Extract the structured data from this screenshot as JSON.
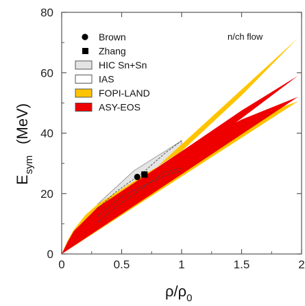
{
  "chart_data": {
    "type": "area",
    "annotation": "n/ch flow",
    "xlabel": {
      "main": "ρ/ρ",
      "sub": "0"
    },
    "ylabel": {
      "main": "E",
      "sub": "sym",
      "unit": "(MeV)"
    },
    "xlim": [
      0,
      2
    ],
    "ylim": [
      0,
      80
    ],
    "x_ticks": [
      "0",
      "0.5",
      "1",
      "1.5",
      "2"
    ],
    "y_ticks": [
      "0",
      "20",
      "40",
      "60",
      "80"
    ],
    "grid": false,
    "legend_position": "top-left",
    "legend": [
      {
        "label": "Brown",
        "marker": "circle"
      },
      {
        "label": "Zhang",
        "marker": "square"
      },
      {
        "label": "HIC Sn+Sn",
        "marker": "box",
        "color": "#e4e4e4",
        "border": "#555555"
      },
      {
        "label": "IAS",
        "marker": "box",
        "color": "#ffffff",
        "border": "#555555"
      },
      {
        "label": "FOPI-LAND",
        "marker": "box",
        "color": "#ffc400",
        "border": "#555555"
      },
      {
        "label": "ASY-EOS",
        "marker": "box",
        "color": "#ee0000",
        "border": "#555555"
      }
    ],
    "points": [
      {
        "name": "Brown",
        "marker": "circle",
        "x": 0.63,
        "y": 25.5
      },
      {
        "name": "Zhang",
        "marker": "square",
        "x": 0.69,
        "y": 26.3
      }
    ],
    "bands": [
      {
        "name": "HIC Sn+Sn",
        "color": "#e4e4e4",
        "stroke": "#888888",
        "upper": [
          [
            0.3,
            16.5
          ],
          [
            0.6,
            27.5
          ],
          [
            1.0,
            37.5
          ]
        ],
        "lower": [
          [
            0.3,
            11.0
          ],
          [
            0.6,
            18.5
          ],
          [
            1.0,
            27.0
          ]
        ]
      },
      {
        "name": "FOPI-LAND",
        "color": "#ffc400",
        "upper": [
          [
            0.0,
            0.0
          ],
          [
            0.05,
            4.5
          ],
          [
            0.1,
            8.0
          ],
          [
            0.2,
            13.0
          ],
          [
            0.3,
            16.5
          ],
          [
            1.0,
            34.0
          ],
          [
            1.5,
            52.5
          ],
          [
            1.97,
            71.5
          ]
        ],
        "lower": [
          [
            1.97,
            50.5
          ],
          [
            1.5,
            44.0
          ],
          [
            1.0,
            34.0
          ],
          [
            0.3,
            9.5
          ],
          [
            0.2,
            6.5
          ],
          [
            0.1,
            3.5
          ],
          [
            0.0,
            0.0
          ]
        ]
      },
      {
        "name": "ASY-EOS",
        "color": "#ee0000",
        "upper": [
          [
            0.0,
            0.0
          ],
          [
            0.05,
            4.0
          ],
          [
            0.1,
            7.5
          ],
          [
            0.2,
            11.5
          ],
          [
            0.3,
            15.5
          ],
          [
            1.0,
            34.0
          ],
          [
            1.5,
            47.5
          ],
          [
            1.97,
            59.0
          ]
        ],
        "lower": [
          [
            1.97,
            52.0
          ],
          [
            1.5,
            44.5
          ],
          [
            1.0,
            34.0
          ],
          [
            0.3,
            11.5
          ],
          [
            0.2,
            8.5
          ],
          [
            0.1,
            5.0
          ],
          [
            0.0,
            0.0
          ]
        ]
      }
    ],
    "ias_dashed_lines": [
      [
        [
          0.3,
          15.0
        ],
        [
          0.45,
          20.5
        ],
        [
          0.68,
          27.0
        ],
        [
          0.85,
          33.0
        ],
        [
          1.0,
          37.5
        ]
      ],
      [
        [
          0.3,
          10.5
        ],
        [
          0.45,
          15.5
        ],
        [
          0.68,
          22.0
        ],
        [
          0.85,
          27.0
        ],
        [
          1.0,
          28.5
        ]
      ],
      [
        [
          0.3,
          12.5
        ],
        [
          0.5,
          19.0
        ],
        [
          0.7,
          23.0
        ],
        [
          0.9,
          26.5
        ],
        [
          1.0,
          27.5
        ]
      ]
    ]
  }
}
